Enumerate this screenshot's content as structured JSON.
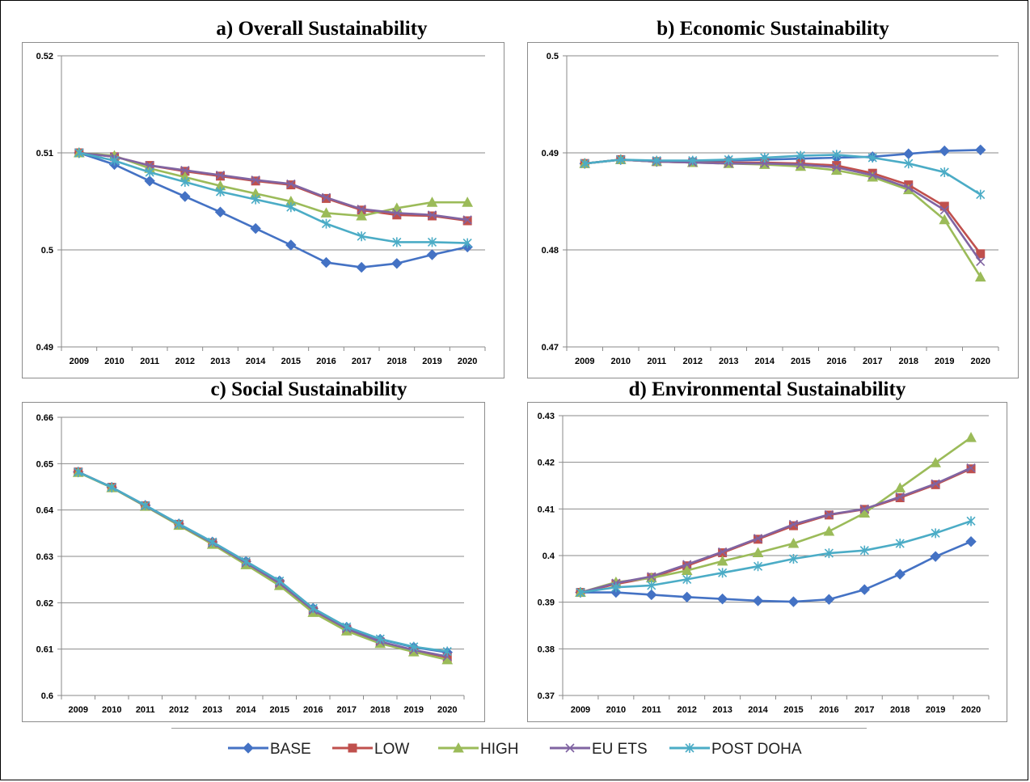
{
  "series_styles": [
    {
      "name": "BASE",
      "color": "#4472C4",
      "marker": "diamond"
    },
    {
      "name": "LOW",
      "color": "#C0504D",
      "marker": "square"
    },
    {
      "name": "HIGH",
      "color": "#9BBB59",
      "marker": "triangle"
    },
    {
      "name": "EU ETS",
      "color": "#8064A2",
      "marker": "x"
    },
    {
      "name": "POST DOHA",
      "color": "#4BACC6",
      "marker": "star"
    }
  ],
  "chart_data": [
    {
      "type": "line",
      "title": "a) Overall Sustainability",
      "x": [
        "2009",
        "2010",
        "2011",
        "2012",
        "2013",
        "2014",
        "2015",
        "2016",
        "2017",
        "2018",
        "2019",
        "2020"
      ],
      "ylim": [
        0.49,
        0.52
      ],
      "yticks": [
        "0.49",
        "0.5",
        "0.51",
        "0.52"
      ],
      "grid": true,
      "series": [
        {
          "name": "BASE",
          "values": [
            0.51,
            0.5088,
            0.5071,
            0.5055,
            0.5039,
            0.5022,
            0.5005,
            0.4987,
            0.4982,
            0.4986,
            0.4995,
            0.5003
          ]
        },
        {
          "name": "LOW",
          "values": [
            0.51,
            0.5096,
            0.5087,
            0.5081,
            0.5076,
            0.5071,
            0.5067,
            0.5053,
            0.5041,
            0.5036,
            0.5035,
            0.503
          ]
        },
        {
          "name": "HIGH",
          "values": [
            0.51,
            0.5097,
            0.5084,
            0.5075,
            0.5066,
            0.5058,
            0.505,
            0.5038,
            0.5035,
            0.5043,
            0.5049,
            0.5049
          ]
        },
        {
          "name": "EU ETS",
          "values": [
            0.51,
            0.5096,
            0.5087,
            0.5082,
            0.5077,
            0.5072,
            0.5068,
            0.5054,
            0.5042,
            0.5038,
            0.5036,
            0.5031
          ]
        },
        {
          "name": "POST DOHA",
          "values": [
            0.51,
            0.5092,
            0.508,
            0.507,
            0.506,
            0.5052,
            0.5044,
            0.5027,
            0.5014,
            0.5008,
            0.5008,
            0.5007
          ]
        }
      ]
    },
    {
      "type": "line",
      "title": "b) Economic Sustainability",
      "x": [
        "2009",
        "2010",
        "2011",
        "2012",
        "2013",
        "2014",
        "2015",
        "2016",
        "2017",
        "2018",
        "2019",
        "2020"
      ],
      "ylim": [
        0.47,
        0.5
      ],
      "yticks": [
        "0.47",
        "0.48",
        "0.49",
        "0.5"
      ],
      "grid": true,
      "series": [
        {
          "name": "BASE",
          "values": [
            0.4889,
            0.4893,
            0.4891,
            0.4891,
            0.4892,
            0.4893,
            0.4894,
            0.4895,
            0.4896,
            0.4899,
            0.4902,
            0.4903
          ]
        },
        {
          "name": "LOW",
          "values": [
            0.4889,
            0.4893,
            0.4891,
            0.489,
            0.489,
            0.489,
            0.4889,
            0.4887,
            0.4879,
            0.4867,
            0.4845,
            0.4796
          ]
        },
        {
          "name": "HIGH",
          "values": [
            0.4889,
            0.4893,
            0.4891,
            0.489,
            0.4889,
            0.4888,
            0.4886,
            0.4882,
            0.4875,
            0.4862,
            0.4831,
            0.4772
          ]
        },
        {
          "name": "EU ETS",
          "values": [
            0.4889,
            0.4893,
            0.4891,
            0.489,
            0.4889,
            0.4889,
            0.4888,
            0.4885,
            0.4877,
            0.4864,
            0.4841,
            0.4788
          ]
        },
        {
          "name": "POST DOHA",
          "values": [
            0.4889,
            0.4893,
            0.4892,
            0.4892,
            0.4893,
            0.4895,
            0.4897,
            0.4898,
            0.4895,
            0.4889,
            0.488,
            0.4857
          ]
        }
      ]
    },
    {
      "type": "line",
      "title": "c) Social Sustainability",
      "x": [
        "2009",
        "2010",
        "2011",
        "2012",
        "2013",
        "2014",
        "2015",
        "2016",
        "2017",
        "2018",
        "2019",
        "2020"
      ],
      "ylim": [
        0.6,
        0.66
      ],
      "yticks": [
        "0.6",
        "0.61",
        "0.62",
        "0.63",
        "0.64",
        "0.65",
        "0.66"
      ],
      "grid": true,
      "series": [
        {
          "name": "BASE",
          "values": [
            0.6482,
            0.6449,
            0.641,
            0.637,
            0.6331,
            0.6289,
            0.6247,
            0.6188,
            0.6147,
            0.6121,
            0.6104,
            0.6093
          ]
        },
        {
          "name": "LOW",
          "values": [
            0.6482,
            0.6449,
            0.6409,
            0.6369,
            0.6329,
            0.6285,
            0.6241,
            0.6183,
            0.6143,
            0.6115,
            0.6097,
            0.6082
          ]
        },
        {
          "name": "HIGH",
          "values": [
            0.6481,
            0.6448,
            0.6408,
            0.6367,
            0.6326,
            0.6282,
            0.6237,
            0.6179,
            0.6139,
            0.6112,
            0.6094,
            0.6077
          ]
        },
        {
          "name": "EU ETS",
          "values": [
            0.6482,
            0.6449,
            0.6409,
            0.6369,
            0.6329,
            0.6286,
            0.6242,
            0.6184,
            0.6144,
            0.6116,
            0.6098,
            0.6084
          ]
        },
        {
          "name": "POST DOHA",
          "values": [
            0.6482,
            0.6449,
            0.641,
            0.637,
            0.6331,
            0.6289,
            0.6247,
            0.6188,
            0.6148,
            0.6122,
            0.6105,
            0.6095
          ]
        }
      ]
    },
    {
      "type": "line",
      "title": "d) Environmental Sustainability",
      "x": [
        "2009",
        "2010",
        "2011",
        "2012",
        "2013",
        "2014",
        "2015",
        "2016",
        "2017",
        "2018",
        "2019",
        "2020"
      ],
      "ylim": [
        0.37,
        0.43
      ],
      "yticks": [
        "0.37",
        "0.38",
        "0.39",
        "0.4",
        "0.41",
        "0.42",
        "0.43"
      ],
      "grid": true,
      "series": [
        {
          "name": "BASE",
          "values": [
            0.3921,
            0.3921,
            0.3916,
            0.3911,
            0.3907,
            0.3903,
            0.3901,
            0.3906,
            0.3927,
            0.396,
            0.3998,
            0.403
          ]
        },
        {
          "name": "LOW",
          "values": [
            0.3921,
            0.3939,
            0.3953,
            0.3978,
            0.4006,
            0.4035,
            0.4064,
            0.4087,
            0.4099,
            0.4124,
            0.4152,
            0.4186
          ]
        },
        {
          "name": "HIGH",
          "values": [
            0.3921,
            0.3943,
            0.3952,
            0.3968,
            0.3988,
            0.4006,
            0.4026,
            0.4052,
            0.4091,
            0.4145,
            0.4199,
            0.4253
          ]
        },
        {
          "name": "EU ETS",
          "values": [
            0.3921,
            0.3941,
            0.3955,
            0.3981,
            0.4008,
            0.4037,
            0.4067,
            0.4088,
            0.41,
            0.4126,
            0.4154,
            0.4188
          ]
        },
        {
          "name": "POST DOHA",
          "values": [
            0.3921,
            0.3932,
            0.3936,
            0.3949,
            0.3963,
            0.3977,
            0.3993,
            0.4005,
            0.4011,
            0.4026,
            0.4048,
            0.4074
          ]
        }
      ]
    }
  ],
  "legend": {
    "placement": "bottom"
  }
}
